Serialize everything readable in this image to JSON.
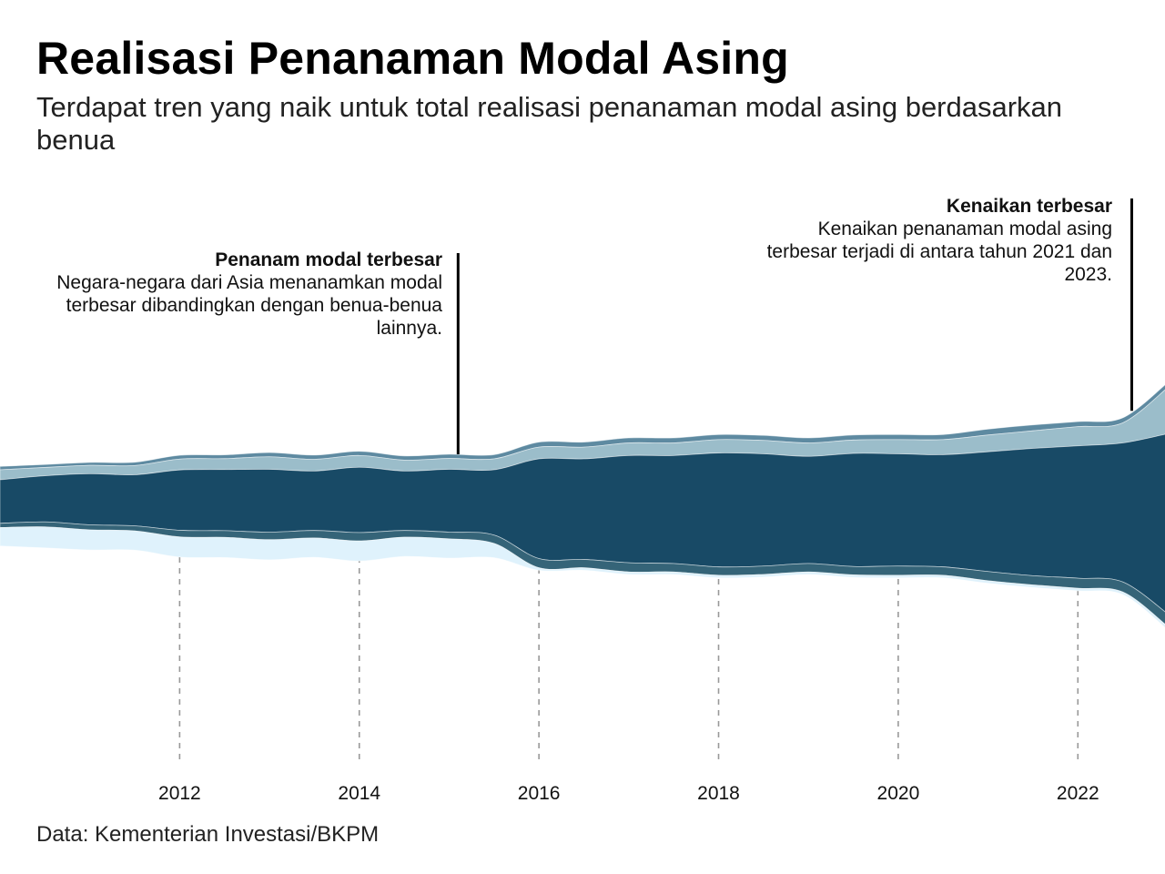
{
  "title": "Realisasi Penanaman Modal Asing",
  "subtitle": "Terdapat tren yang naik untuk total realisasi penanaman modal asing berdasarkan benua",
  "source": "Data: Kementerian Investasi/BKPM",
  "annotations": [
    {
      "heading": "Penanam modal terbesar",
      "text": "Negara-negara dari Asia menanamkan modal terbesar dibandingkan dengan benua-benua lainnya.",
      "x": 2015.1
    },
    {
      "heading": "Kenaikan terbesar",
      "text": "Kenaikan penanaman modal asing terbesar terjadi di antara tahun 2021 dan 2023.",
      "x": 2022.6
    }
  ],
  "colors": {
    "series_0": "#5e8aa1",
    "series_1": "#9bbdca",
    "series_2": "#184a66",
    "series_3": "#356478",
    "series_4": "#dff2fc",
    "grid": "#999999"
  },
  "chart_data": {
    "type": "area",
    "layout": "streamgraph",
    "x": [
      2010.0,
      2010.5,
      2011.0,
      2011.5,
      2012.0,
      2012.5,
      2013.0,
      2013.5,
      2014.0,
      2014.5,
      2015.0,
      2015.5,
      2016.0,
      2016.5,
      2017.0,
      2017.5,
      2018.0,
      2018.5,
      2019.0,
      2019.5,
      2020.0,
      2020.5,
      2021.0,
      2021.5,
      2022.0,
      2022.5,
      2023.0
    ],
    "xticks": [
      2012,
      2014,
      2016,
      2018,
      2020,
      2022
    ],
    "xlim": [
      2010.0,
      2022.97
    ],
    "series": [
      {
        "values": [
          0.4,
          0.35,
          0.35,
          0.4,
          0.45,
          0.45,
          0.5,
          0.5,
          0.5,
          0.5,
          0.5,
          0.5,
          0.6,
          0.6,
          0.6,
          0.6,
          0.6,
          0.6,
          0.6,
          0.6,
          0.6,
          0.6,
          0.7,
          0.7,
          0.6,
          0.6,
          0.6
        ]
      },
      {
        "values": [
          1.2,
          1.0,
          1.0,
          1.1,
          1.3,
          1.3,
          1.5,
          1.4,
          1.4,
          1.3,
          1.3,
          1.3,
          1.4,
          1.4,
          1.5,
          1.5,
          1.6,
          1.6,
          1.6,
          1.6,
          1.7,
          1.8,
          2.0,
          2.1,
          2.3,
          2.4,
          5.5
        ]
      },
      {
        "values": [
          5.2,
          5.5,
          6.1,
          6.1,
          7.2,
          7.3,
          7.5,
          7.1,
          7.8,
          7.1,
          7.5,
          7.8,
          11.9,
          12.0,
          12.8,
          12.9,
          13.6,
          13.4,
          12.8,
          13.5,
          13.4,
          13.4,
          14.3,
          15.2,
          15.8,
          16.6,
          21.5
        ]
      },
      {
        "values": [
          0.5,
          0.6,
          0.6,
          0.6,
          0.8,
          0.8,
          0.9,
          0.9,
          1.0,
          0.8,
          0.8,
          1.0,
          1.1,
          1.0,
          1.1,
          1.0,
          1.0,
          1.0,
          1.0,
          1.0,
          1.1,
          1.0,
          1.1,
          1.1,
          1.2,
          1.2,
          1.5
        ]
      },
      {
        "values": [
          2.2,
          2.5,
          2.4,
          2.3,
          2.4,
          2.4,
          2.4,
          2.3,
          2.4,
          2.3,
          2.3,
          1.7,
          0.3,
          0.3,
          0.3,
          0.3,
          0.3,
          0.3,
          0.3,
          0.3,
          0.3,
          0.3,
          0.3,
          0.3,
          0.3,
          0.3,
          0.4
        ]
      }
    ]
  }
}
